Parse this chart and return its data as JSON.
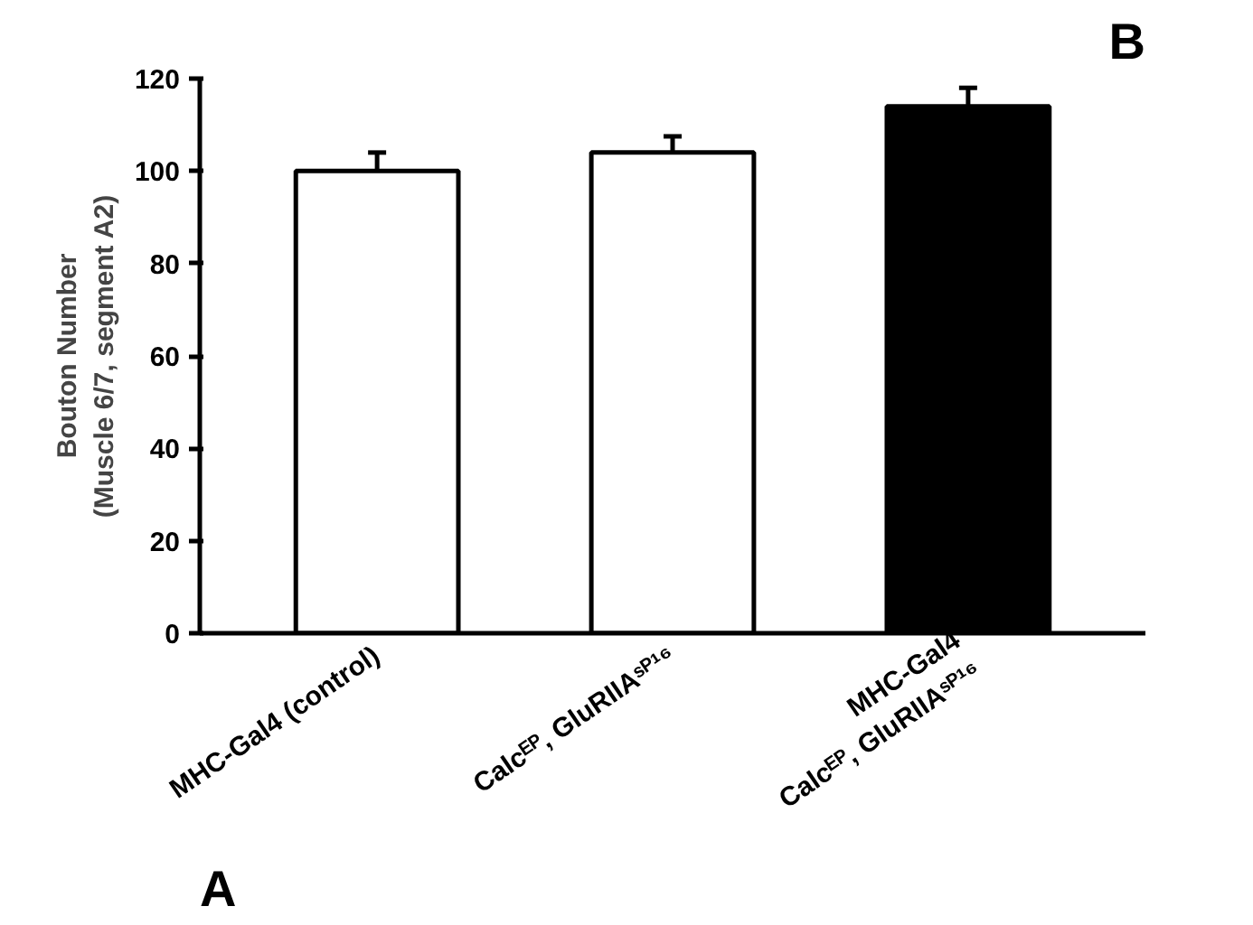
{
  "chart_data": {
    "type": "bar",
    "categories": [
      "MHC-Gal4 (control)",
      "Calcᴱᴾ, GluRIIAˢᴾ¹⁶",
      "MHC-Gal4\nCalcᴱᴾ, GluRIIAˢᴾ¹⁶"
    ],
    "values": [
      100,
      104,
      114
    ],
    "colors": [
      "#ffffff",
      "#ffffff",
      "#000000"
    ],
    "errors": [
      [
        100,
        104
      ],
      [
        104,
        107.5
      ],
      [
        114,
        118
      ]
    ],
    "ylabel": "Bouton Number\n(Muscle 6/7, segment A2)",
    "ylim": [
      0,
      120
    ],
    "yticks": [
      0,
      20,
      40,
      60,
      80,
      100,
      120
    ],
    "annotations": [
      "A",
      "B"
    ],
    "grid": false
  }
}
